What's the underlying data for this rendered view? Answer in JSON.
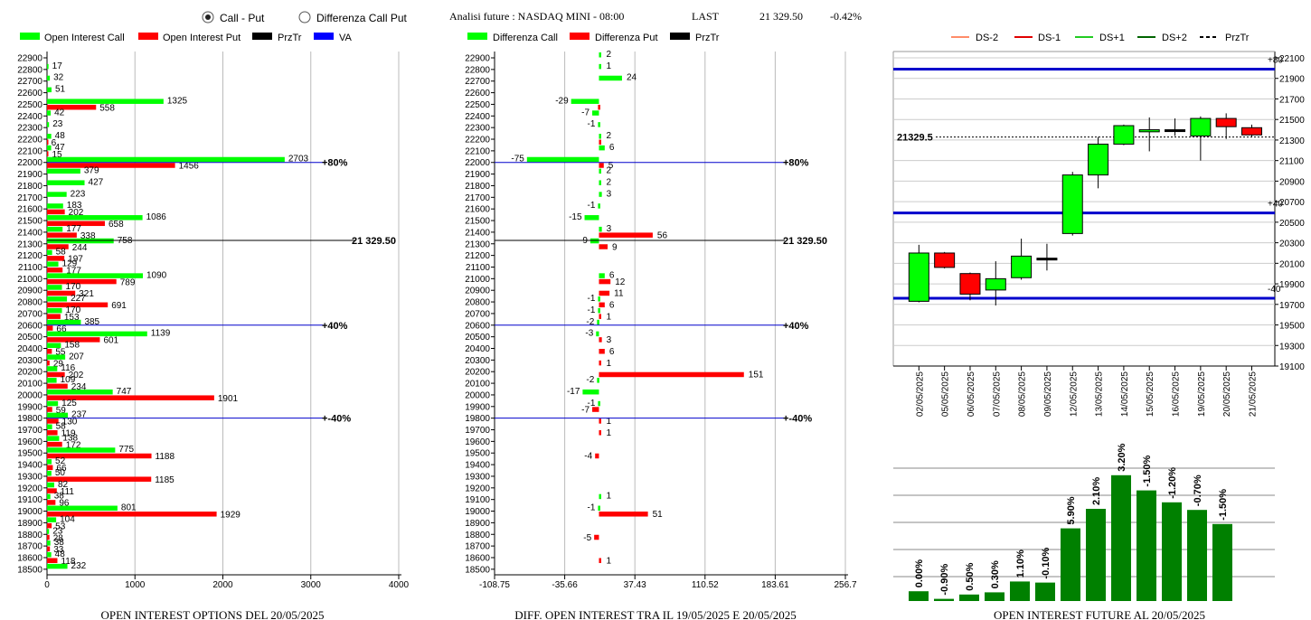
{
  "header": {
    "radio_call_put": "Call - Put",
    "radio_diff": "Differenza Call Put",
    "selected_radio": "call_put",
    "title": "Analisi future : NASDAQ MINI - 08:00",
    "last_label": "LAST",
    "last_value": "21 329.50",
    "change": "-0.42%"
  },
  "colors": {
    "call": "#00ff00",
    "put": "#ff0000",
    "prztr": "#000000",
    "va": "#0000ff",
    "dark_green": "#008000"
  },
  "chart_data": [
    {
      "type": "bar",
      "id": "oi_options",
      "footer": "OPEN INTEREST OPTIONS DEL 20/05/2025",
      "legend": [
        "Open Interest Call",
        "Open Interest Put",
        "PrzTr",
        "VA"
      ],
      "strikes": [
        22900,
        22800,
        22700,
        22600,
        22500,
        22400,
        22300,
        22200,
        22100,
        22000,
        21900,
        21800,
        21700,
        21600,
        21500,
        21400,
        21300,
        21200,
        21100,
        21000,
        20900,
        20800,
        20700,
        20600,
        20500,
        20400,
        20300,
        20200,
        20100,
        20000,
        19900,
        19800,
        19700,
        19600,
        19500,
        19400,
        19300,
        19200,
        19100,
        19000,
        18900,
        18800,
        18700,
        18600,
        18500
      ],
      "series": [
        {
          "name": "Open Interest Call",
          "values": [
            null,
            17,
            32,
            51,
            1325,
            42,
            23,
            48,
            47,
            2703,
            379,
            427,
            223,
            183,
            1086,
            177,
            758,
            58,
            129,
            1090,
            170,
            227,
            170,
            385,
            1139,
            158,
            207,
            116,
            109,
            747,
            125,
            237,
            58,
            138,
            775,
            52,
            50,
            82,
            38,
            801,
            104,
            23,
            38,
            48,
            232
          ]
        },
        {
          "name": "Open Interest Put",
          "values": [
            null,
            null,
            null,
            null,
            558,
            null,
            null,
            6,
            15,
            1456,
            null,
            null,
            null,
            202,
            658,
            338,
            244,
            197,
            177,
            789,
            321,
            691,
            153,
            66,
            601,
            55,
            29,
            202,
            234,
            1901,
            59,
            130,
            119,
            172,
            1188,
            66,
            1185,
            111,
            96,
            1929,
            53,
            28,
            33,
            118,
            null
          ]
        }
      ],
      "xlim": [
        0,
        4000
      ],
      "xticks": [
        0,
        1000,
        2000,
        3000,
        4000
      ],
      "lines": [
        {
          "strike": 22000,
          "label": "80%",
          "color": "blue"
        },
        {
          "strike": 21329.5,
          "label": "21 329.50",
          "color": "black"
        },
        {
          "strike": 20600,
          "label": "40%",
          "color": "blue"
        },
        {
          "strike": 19800,
          "label": "-40%",
          "color": "blue"
        }
      ]
    },
    {
      "type": "bar",
      "id": "diff_oi",
      "footer": "DIFF. OPEN INTEREST TRA IL 19/05/2025 E 20/05/2025",
      "legend": [
        "Differenza Call",
        "Differenza Put",
        "PrzTr"
      ],
      "strikes": [
        22900,
        22800,
        22700,
        22600,
        22500,
        22400,
        22300,
        22200,
        22100,
        22000,
        21900,
        21800,
        21700,
        21600,
        21500,
        21400,
        21300,
        21200,
        21100,
        21000,
        20900,
        20800,
        20700,
        20600,
        20500,
        20400,
        20300,
        20200,
        20100,
        20000,
        19900,
        19800,
        19700,
        19600,
        19500,
        19400,
        19300,
        19200,
        19100,
        19000,
        18900,
        18800,
        18700,
        18600,
        18500
      ],
      "series": [
        {
          "name": "Differenza Call",
          "values": [
            2,
            1,
            24,
            null,
            -29,
            -7,
            -1,
            2,
            6,
            -75,
            2,
            2,
            3,
            -1,
            -15,
            3,
            -9,
            null,
            null,
            6,
            null,
            -1,
            -1,
            -2,
            -3,
            null,
            null,
            null,
            -2,
            -17,
            -1,
            null,
            null,
            null,
            null,
            null,
            null,
            null,
            1,
            -1,
            null,
            null,
            null,
            null,
            null
          ]
        },
        {
          "name": "Differenza Put",
          "values": [
            null,
            null,
            null,
            null,
            -1,
            null,
            null,
            1,
            null,
            5,
            null,
            null,
            null,
            null,
            null,
            56,
            9,
            null,
            null,
            12,
            11,
            6,
            1,
            null,
            3,
            6,
            1,
            151,
            null,
            null,
            -7,
            1,
            1,
            null,
            -4,
            null,
            null,
            null,
            null,
            51,
            null,
            -5,
            null,
            1,
            null
          ]
        }
      ],
      "value_labels": {
        "Differenza Call": [
          "2",
          "1",
          "24",
          "",
          "-29",
          "-7",
          "-1",
          "2",
          "6",
          "-75",
          "2",
          "2",
          "3",
          "-1",
          "-15",
          "3",
          "-9",
          "",
          "",
          "6",
          "",
          "-1",
          "-1",
          "-2",
          "-3",
          "",
          "",
          "",
          "-2",
          "-17",
          "-1",
          "",
          "",
          "",
          "",
          "",
          "",
          "",
          "1",
          "-1",
          "",
          "",
          "",
          "",
          ""
        ],
        "Differenza Put": [
          "",
          "",
          "",
          "",
          "",
          "",
          "",
          "",
          "",
          "5",
          "",
          "",
          "",
          "",
          "",
          "56",
          "9",
          "",
          "",
          "12",
          "11",
          "6",
          "1",
          "",
          "3",
          "6",
          "1",
          "151",
          "",
          "",
          "-7",
          "1",
          "1",
          "",
          "-4",
          "",
          "",
          "",
          "",
          "51",
          "",
          "-5",
          "",
          "1",
          ""
        ]
      },
      "xlim": [
        -108.75,
        256.7
      ],
      "xticks": [
        "-108.75",
        "-35.66",
        "37.43",
        "110.52",
        "183.61",
        "256.7"
      ],
      "lines": [
        {
          "strike": 22000,
          "label": "80%",
          "color": "blue"
        },
        {
          "strike": 21329.5,
          "label": "21 329.50",
          "color": "black"
        },
        {
          "strike": 20600,
          "label": "40%",
          "color": "blue"
        },
        {
          "strike": 19800,
          "label": "-40%",
          "color": "blue"
        }
      ]
    },
    {
      "type": "candlestick",
      "id": "future_candles",
      "legend": [
        "DS-2",
        "DS-1",
        "DS+1",
        "DS+2",
        "PrzTr"
      ],
      "dates": [
        "02/05/2025",
        "05/05/2025",
        "06/05/2025",
        "07/05/2025",
        "08/05/2025",
        "09/05/2025",
        "12/05/2025",
        "13/05/2025",
        "14/05/2025",
        "15/05/2025",
        "16/05/2025",
        "19/05/2025",
        "20/05/2025",
        "21/05/2025"
      ],
      "candles": [
        {
          "o": 19730,
          "c": 20200,
          "h": 20280,
          "l": 19720
        },
        {
          "o": 20200,
          "c": 20060,
          "h": 20210,
          "l": 20050
        },
        {
          "o": 20000,
          "c": 19800,
          "h": 20010,
          "l": 19740
        },
        {
          "o": 19840,
          "c": 19950,
          "h": 20120,
          "l": 19690
        },
        {
          "o": 19960,
          "c": 20170,
          "h": 20340,
          "l": 19940
        },
        {
          "o": 20150,
          "c": 20150,
          "h": 20290,
          "l": 20030
        },
        {
          "o": 20390,
          "c": 20960,
          "h": 20990,
          "l": 20370
        },
        {
          "o": 20960,
          "c": 21260,
          "h": 21330,
          "l": 20830
        },
        {
          "o": 21260,
          "c": 21440,
          "h": 21450,
          "l": 21250
        },
        {
          "o": 21380,
          "c": 21400,
          "h": 21520,
          "l": 21190
        },
        {
          "o": 21400,
          "c": 21400,
          "h": 21510,
          "l": 21340
        },
        {
          "o": 21340,
          "c": 21510,
          "h": 21530,
          "l": 21100
        },
        {
          "o": 21510,
          "c": 21430,
          "h": 21560,
          "l": 21310
        },
        {
          "o": 21420,
          "c": 21350,
          "h": 21450,
          "l": 21330
        }
      ],
      "ylim": [
        19100,
        22100
      ],
      "yticks": [
        19100,
        19300,
        19500,
        19700,
        19900,
        20100,
        20300,
        20500,
        20700,
        20900,
        21100,
        21300,
        21500,
        21700,
        21900,
        22100
      ],
      "last_label": "21329.5",
      "last_value": 21329.5,
      "hlines": [
        {
          "y": 21990,
          "label": "+80"
        },
        {
          "y": 20590,
          "label": "+40"
        },
        {
          "y": 19760,
          "label": "-40"
        }
      ]
    },
    {
      "type": "bar",
      "id": "oi_future",
      "footer": "OPEN INTEREST FUTURE AL 20/05/2025",
      "labels": [
        "0.00%",
        "-0.90%",
        "0.50%",
        "0.30%",
        "1.10%",
        "-0.10%",
        "5.90%",
        "2.10%",
        "3.20%",
        "-1.50%",
        "-1.20%",
        "-0.70%",
        "-1.50%"
      ],
      "values": [
        0.0,
        -0.9,
        0.5,
        0.3,
        1.1,
        -0.1,
        5.9,
        2.1,
        3.2,
        -1.5,
        -1.2,
        -0.7,
        -1.5
      ],
      "relative_heights": [
        0.09,
        0.02,
        0.06,
        0.08,
        0.18,
        0.17,
        0.67,
        0.85,
        1.16,
        1.02,
        0.91,
        0.84,
        0.71
      ]
    }
  ]
}
